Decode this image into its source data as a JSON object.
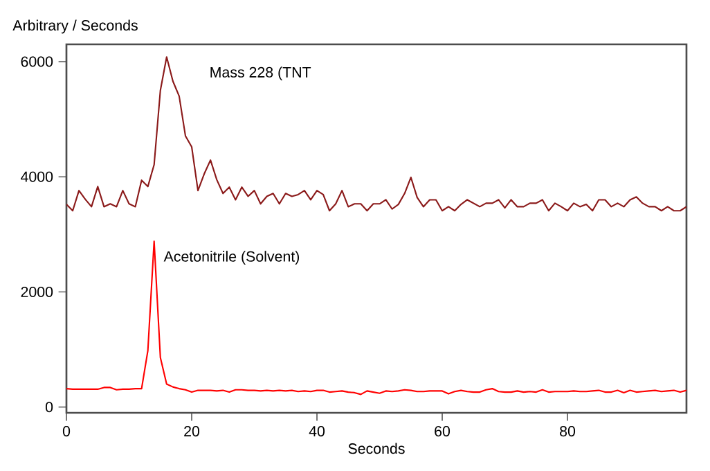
{
  "chart_data": {
    "type": "line",
    "xlabel": "Seconds",
    "ylabel": "Arbitrary / Seconds",
    "x": [
      0,
      1,
      2,
      3,
      4,
      5,
      6,
      7,
      8,
      9,
      10,
      11,
      12,
      13,
      14,
      15,
      16,
      17,
      18,
      19,
      20,
      21,
      22,
      23,
      24,
      25,
      26,
      27,
      28,
      29,
      30,
      31,
      32,
      33,
      34,
      35,
      36,
      37,
      38,
      39,
      40,
      41,
      42,
      43,
      44,
      45,
      46,
      47,
      48,
      49,
      50,
      51,
      52,
      53,
      54,
      55,
      56,
      57,
      58,
      59,
      60,
      61,
      62,
      63,
      64,
      65,
      66,
      67,
      68,
      69,
      70,
      71,
      72,
      73,
      74,
      75,
      76,
      77,
      78,
      79,
      80,
      81,
      82,
      83,
      84,
      85,
      86,
      87,
      88,
      89,
      90,
      91,
      92,
      93,
      94,
      95,
      96,
      97,
      98,
      99
    ],
    "series": [
      {
        "name": "Mass 228 (TNT",
        "color": "#8b1a1a",
        "values": [
          3520,
          3410,
          3760,
          3610,
          3480,
          3830,
          3480,
          3530,
          3480,
          3760,
          3530,
          3480,
          3940,
          3830,
          4210,
          5500,
          6080,
          5660,
          5400,
          4710,
          4520,
          3760,
          4050,
          4290,
          3950,
          3710,
          3820,
          3600,
          3820,
          3660,
          3760,
          3530,
          3660,
          3710,
          3530,
          3710,
          3660,
          3690,
          3760,
          3600,
          3760,
          3690,
          3410,
          3530,
          3760,
          3480,
          3530,
          3530,
          3410,
          3530,
          3530,
          3600,
          3440,
          3520,
          3710,
          3990,
          3640,
          3480,
          3600,
          3600,
          3410,
          3480,
          3410,
          3520,
          3600,
          3540,
          3480,
          3540,
          3540,
          3600,
          3460,
          3600,
          3480,
          3480,
          3540,
          3540,
          3600,
          3410,
          3540,
          3480,
          3410,
          3540,
          3480,
          3520,
          3410,
          3600,
          3600,
          3480,
          3540,
          3480,
          3600,
          3650,
          3540,
          3480,
          3480,
          3410,
          3480,
          3410,
          3410,
          3480
        ]
      },
      {
        "name": "Acetonitrile (Solvent)",
        "color": "#ff0000",
        "values": [
          320,
          310,
          310,
          310,
          310,
          310,
          340,
          340,
          300,
          310,
          310,
          320,
          320,
          980,
          2880,
          860,
          400,
          350,
          320,
          300,
          260,
          290,
          290,
          290,
          280,
          290,
          260,
          300,
          300,
          290,
          290,
          280,
          290,
          280,
          290,
          280,
          290,
          270,
          280,
          270,
          290,
          290,
          260,
          270,
          280,
          260,
          250,
          220,
          280,
          260,
          240,
          280,
          270,
          280,
          300,
          290,
          270,
          270,
          280,
          280,
          280,
          230,
          270,
          290,
          270,
          260,
          260,
          300,
          320,
          270,
          260,
          260,
          280,
          260,
          270,
          260,
          300,
          260,
          270,
          270,
          270,
          280,
          270,
          270,
          280,
          290,
          260,
          260,
          290,
          250,
          290,
          260,
          270,
          280,
          290,
          270,
          280,
          290,
          260,
          290
        ]
      }
    ],
    "xlim": [
      0,
      99
    ],
    "ylim": [
      -100,
      6300
    ],
    "xticks": [
      0,
      20,
      40,
      60,
      80
    ],
    "yticks": [
      0,
      2000,
      4000,
      6000
    ],
    "grid": false,
    "legend": false,
    "marker": "none",
    "line_style": "solid"
  }
}
